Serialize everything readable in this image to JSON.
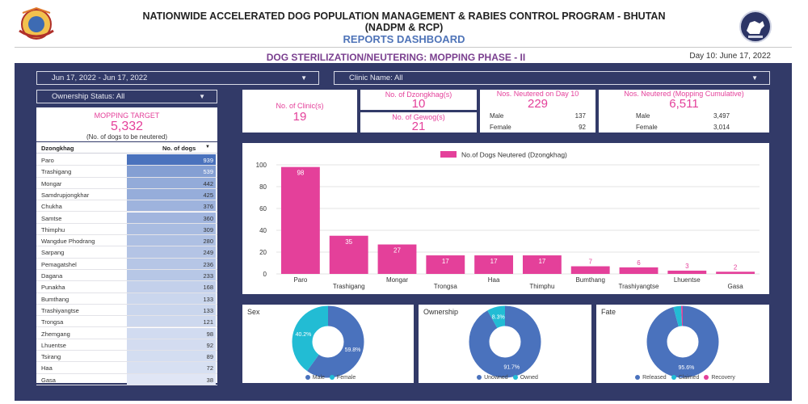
{
  "header": {
    "title_line1": "NATIONWIDE ACCELERATED DOG POPULATION MANAGEMENT & RABIES CONTROL PROGRAM - BHUTAN",
    "title_line2": "(NADPM & RCP)",
    "subtitle": "REPORTS DASHBOARD",
    "left_logo": "bhutan-emblem",
    "right_logo": "program-logo-dog"
  },
  "section": {
    "title": "DOG STERILIZATION/NEUTERING: MOPPING PHASE - II",
    "day": "Day 10: June 17, 2022"
  },
  "filters": {
    "date_range": "Jun 17, 2022 - Jun 17, 2022",
    "clinic": "Clinic Name: All",
    "ownership": "Ownership Status: All"
  },
  "kpis": {
    "mopping_target_label": "MOPPING TARGET",
    "mopping_target_value": "5,332",
    "mopping_target_note": "(No. of dogs to be neutered)",
    "clinics_label": "No. of Clinic(s)",
    "clinics_value": "19",
    "dzongkhag_label": "No. of Dzongkhag(s)",
    "dzongkhag_value": "10",
    "gewog_label": "No. of Gewog(s)",
    "gewog_value": "21",
    "day10_label": "Nos. Neutered on Day 10",
    "day10_value": "229",
    "day10_male_label": "Male",
    "day10_male": "137",
    "day10_female_label": "Female",
    "day10_female": "92",
    "cum_label": "Nos. Neutered (Mopping Cumulative)",
    "cum_value": "6,511",
    "cum_male_label": "Male",
    "cum_male": "3,497",
    "cum_female_label": "Female",
    "cum_female": "3,014"
  },
  "table": {
    "col_name": "Dzongkhag",
    "col_value": "No. of dogs",
    "sort_icon": "sort-descending",
    "rows": [
      {
        "name": "Paro",
        "value": 939
      },
      {
        "name": "Trashigang",
        "value": 539
      },
      {
        "name": "Mongar",
        "value": 442
      },
      {
        "name": "Samdrupjongkhar",
        "value": 425
      },
      {
        "name": "Chukha",
        "value": 376
      },
      {
        "name": "Samtse",
        "value": 360
      },
      {
        "name": "Thimphu",
        "value": 309
      },
      {
        "name": "Wangdue Phodrang",
        "value": 280
      },
      {
        "name": "Sarpang",
        "value": 249
      },
      {
        "name": "Pemagatshel",
        "value": 236
      },
      {
        "name": "Dagana",
        "value": 233
      },
      {
        "name": "Punakha",
        "value": 168
      },
      {
        "name": "Bumthang",
        "value": 133
      },
      {
        "name": "Trashiyangtse",
        "value": 133
      },
      {
        "name": "Trongsa",
        "value": 121
      },
      {
        "name": "Zhemgang",
        "value": 98
      },
      {
        "name": "Lhuentse",
        "value": 92
      },
      {
        "name": "Tsirang",
        "value": 89
      },
      {
        "name": "Haa",
        "value": 72
      },
      {
        "name": "Gasa",
        "value": 38
      }
    ]
  },
  "chart_data": [
    {
      "type": "bar",
      "title": "",
      "legend": "No.of Dogs Neutered (Dzongkhag)",
      "legend_position": "top",
      "categories": [
        "Paro",
        "Trashigang",
        "Mongar",
        "Trongsa",
        "Haa",
        "Thimphu",
        "Bumthang",
        "Trashiyangtse",
        "Lhuentse",
        "Gasa"
      ],
      "values": [
        98,
        35,
        27,
        17,
        17,
        17,
        7,
        6,
        3,
        2
      ],
      "ylim": [
        0,
        100
      ],
      "yticks": [
        0,
        20,
        40,
        60,
        80,
        100
      ],
      "grid": true,
      "color": "#e4409a"
    },
    {
      "type": "pie",
      "title": "Sex",
      "labels": [
        "Male",
        "Female"
      ],
      "values": [
        59.8,
        40.2
      ],
      "value_labels": [
        "59.8%",
        "40.2%"
      ],
      "colors": [
        "#4a72bd",
        "#22bcd4"
      ]
    },
    {
      "type": "pie",
      "title": "Ownership",
      "labels": [
        "Unowned",
        "Owned"
      ],
      "values": [
        91.7,
        8.3
      ],
      "value_labels": [
        "91.7%",
        "8.3%"
      ],
      "colors": [
        "#4a72bd",
        "#22bcd4"
      ]
    },
    {
      "type": "pie",
      "title": "Fate",
      "labels": [
        "Released",
        "Claimed",
        "Recovery"
      ],
      "values": [
        95.6,
        3.5,
        0.9
      ],
      "value_labels": [
        "95.6%",
        "",
        ""
      ],
      "colors": [
        "#4a72bd",
        "#22bcd4",
        "#e4409a"
      ]
    }
  ]
}
